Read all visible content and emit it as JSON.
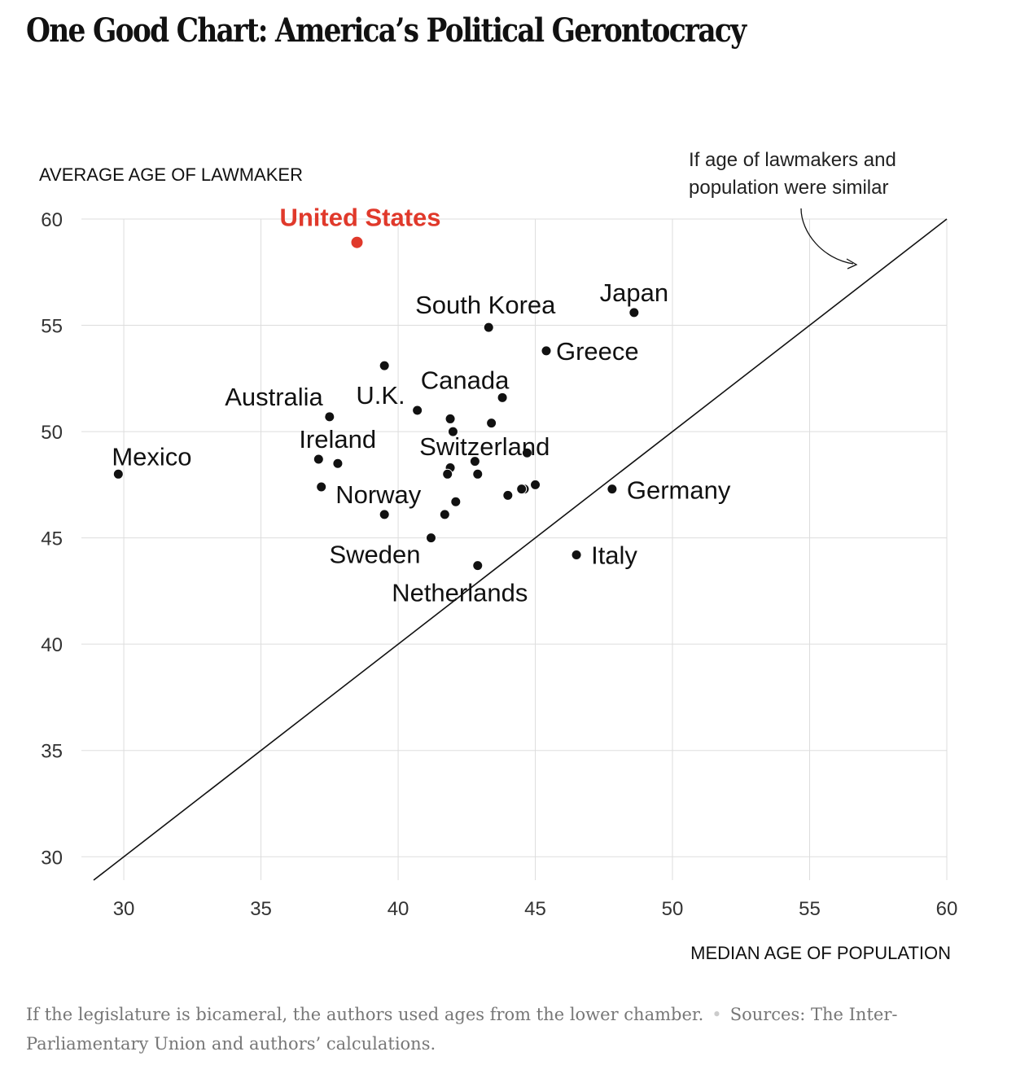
{
  "title": "One Good Chart: America’s Political Gerontocracy",
  "footer": {
    "note": "If the legislature is bicameral, the authors used ages from the lower chamber.",
    "separator": "•",
    "sources": "Sources: The Inter-Parliamentary Union and authors’ calculations."
  },
  "chart_data": {
    "type": "scatter",
    "xlabel": "MEDIAN AGE OF POPULATION",
    "ylabel": "AVERAGE AGE OF LAWMAKER",
    "xlim": [
      28.9,
      60
    ],
    "ylim": [
      28.9,
      60
    ],
    "xticks": [
      30,
      35,
      40,
      45,
      50,
      55,
      60
    ],
    "yticks": [
      30,
      35,
      40,
      45,
      50,
      55,
      60
    ],
    "grid": true,
    "reference_line": {
      "label": "If age of lawmakers and population were similar",
      "label_lines": [
        "If age of lawmakers and",
        "population were similar"
      ],
      "from": [
        28.9,
        28.9
      ],
      "to": [
        60,
        60
      ]
    },
    "highlight_color": "#e0392b",
    "point_color": "#111111",
    "points": [
      {
        "label": "United States",
        "x": 38.5,
        "y": 58.9,
        "highlight": true
      },
      {
        "label": "South Korea",
        "x": 43.3,
        "y": 54.9
      },
      {
        "label": "Japan",
        "x": 48.6,
        "y": 55.6
      },
      {
        "label": "Greece",
        "x": 45.4,
        "y": 53.8
      },
      {
        "label": "",
        "x": 39.5,
        "y": 53.1
      },
      {
        "label": "Canada",
        "x": 43.8,
        "y": 51.6
      },
      {
        "label": "U.K.",
        "x": 40.7,
        "y": 51.0
      },
      {
        "label": "Australia",
        "x": 37.5,
        "y": 50.7
      },
      {
        "label": "",
        "x": 41.9,
        "y": 50.6
      },
      {
        "label": "",
        "x": 43.4,
        "y": 50.4
      },
      {
        "label": "",
        "x": 42.0,
        "y": 50.0
      },
      {
        "label": "Switzerland",
        "x": 44.7,
        "y": 49.0
      },
      {
        "label": "Mexico",
        "x": 29.8,
        "y": 48.0
      },
      {
        "label": "Ireland",
        "x": 37.1,
        "y": 48.7
      },
      {
        "label": "",
        "x": 37.8,
        "y": 48.5
      },
      {
        "label": "",
        "x": 42.8,
        "y": 48.6
      },
      {
        "label": "",
        "x": 41.9,
        "y": 48.3
      },
      {
        "label": "",
        "x": 41.8,
        "y": 48.0
      },
      {
        "label": "",
        "x": 42.9,
        "y": 48.0
      },
      {
        "label": "",
        "x": 37.2,
        "y": 47.4
      },
      {
        "label": "",
        "x": 45.0,
        "y": 47.5
      },
      {
        "label": "",
        "x": 44.6,
        "y": 47.3
      },
      {
        "label": "",
        "x": 44.5,
        "y": 47.3
      },
      {
        "label": "Germany",
        "x": 47.8,
        "y": 47.3
      },
      {
        "label": "",
        "x": 44.0,
        "y": 47.0
      },
      {
        "label": "",
        "x": 42.1,
        "y": 46.7
      },
      {
        "label": "Norway",
        "x": 39.5,
        "y": 46.1
      },
      {
        "label": "",
        "x": 41.7,
        "y": 46.1
      },
      {
        "label": "Sweden",
        "x": 41.2,
        "y": 45.0
      },
      {
        "label": "Italy",
        "x": 46.5,
        "y": 44.2
      },
      {
        "label": "Netherlands",
        "x": 42.9,
        "y": 43.7
      }
    ]
  }
}
